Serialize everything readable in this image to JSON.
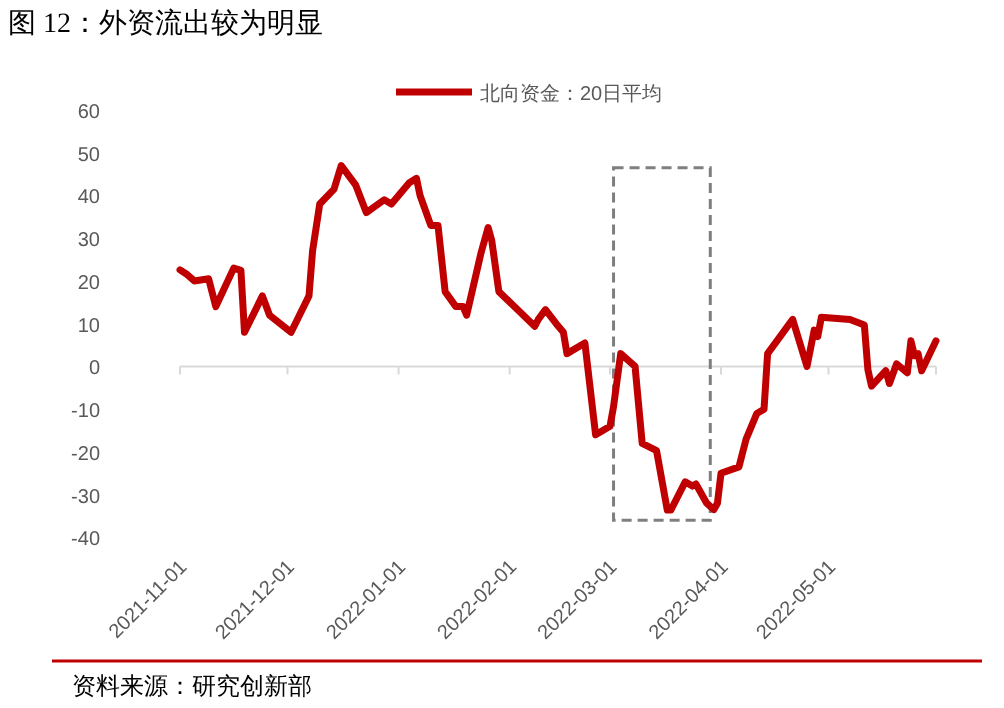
{
  "chart_data": {
    "type": "line",
    "title": "图 12：外资流出较为明显",
    "annotations": [
      "资料来源：研究创新部"
    ],
    "x": [
      "2021-11-01",
      "2021-11-03",
      "2021-11-05",
      "2021-11-09",
      "2021-11-11",
      "2021-11-16",
      "2021-11-18",
      "2021-11-19",
      "2021-11-24",
      "2021-11-26",
      "2021-11-29",
      "2021-12-02",
      "2021-12-07",
      "2021-12-08",
      "2021-12-10",
      "2021-12-14",
      "2021-12-16",
      "2021-12-20",
      "2021-12-23",
      "2021-12-28",
      "2021-12-30",
      "2022-01-04",
      "2022-01-06",
      "2022-01-07",
      "2022-01-10",
      "2022-01-12",
      "2022-01-14",
      "2022-01-17",
      "2022-01-19",
      "2022-01-20",
      "2022-01-24",
      "2022-01-26",
      "2022-01-27",
      "2022-01-29",
      "2022-02-08",
      "2022-02-09",
      "2022-02-11",
      "2022-02-14",
      "2022-02-16",
      "2022-02-17",
      "2022-02-22",
      "2022-02-25",
      "2022-03-01",
      "2022-03-02",
      "2022-03-04",
      "2022-03-08",
      "2022-03-10",
      "2022-03-14",
      "2022-03-17",
      "2022-03-18",
      "2022-03-22",
      "2022-03-24",
      "2022-03-25",
      "2022-03-28",
      "2022-03-30",
      "2022-03-31",
      "2022-04-01",
      "2022-04-06",
      "2022-04-08",
      "2022-04-11",
      "2022-04-13",
      "2022-04-14",
      "2022-04-21",
      "2022-04-25",
      "2022-04-27",
      "2022-04-28",
      "2022-04-29",
      "2022-05-07",
      "2022-05-11",
      "2022-05-12",
      "2022-05-13",
      "2022-05-17",
      "2022-05-18",
      "2022-05-20",
      "2022-05-23",
      "2022-05-24",
      "2022-05-25",
      "2022-05-26",
      "2022-05-27",
      "2022-05-31"
    ],
    "series": [
      {
        "name": "北向资金：20日平均",
        "color": "#c00000",
        "values": [
          22.6,
          21.5,
          20,
          20.5,
          14,
          23,
          22.5,
          8,
          16.5,
          12,
          10,
          8,
          16.5,
          27,
          38,
          41.5,
          47,
          42.5,
          36,
          39,
          38,
          43,
          44,
          40,
          33,
          33,
          17.5,
          14,
          14,
          12,
          26.5,
          32.5,
          29.5,
          17.5,
          9.4,
          11,
          13.3,
          10,
          8,
          3,
          5.5,
          -16,
          -14,
          -9.4,
          3,
          0,
          -18,
          -19.7,
          -33.6,
          -33.6,
          -27,
          -28,
          -27.5,
          -32,
          -33.5,
          -32,
          -25,
          -23.5,
          -17,
          -11,
          -10,
          3,
          11,
          0,
          8.5,
          7,
          11.5,
          11,
          9.7,
          -0.8,
          -4.6,
          -1,
          -4,
          0.6,
          -1.5,
          6,
          2.5,
          3,
          -1,
          6
        ]
      }
    ],
    "xlim": [
      "2021-11-01",
      "2022-05-31"
    ],
    "xticks": [
      "2021-11-01",
      "2021-12-01",
      "2022-01-01",
      "2022-02-01",
      "2022-03-01",
      "2022-04-01",
      "2022-05-01"
    ],
    "ylim": [
      -40,
      60
    ],
    "yticks": [
      -40,
      -30,
      -20,
      -10,
      0,
      10,
      20,
      30,
      40,
      50,
      60
    ],
    "legend": "top",
    "marker": "none",
    "line_style": "solid"
  }
}
